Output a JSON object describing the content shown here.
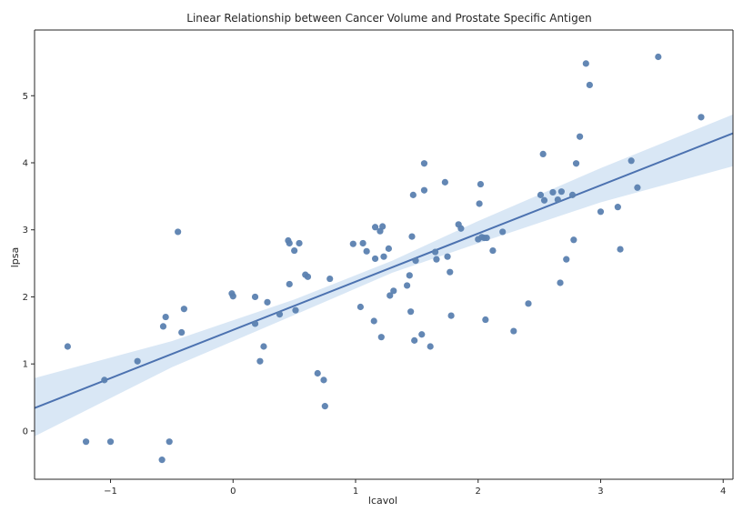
{
  "chart_data": {
    "type": "scatter",
    "title": "Linear Relationship between Cancer Volume and Prostate Specific Antigen",
    "xlabel": "lcavol",
    "ylabel": "lpsa",
    "xlim": [
      -1.62,
      4.08
    ],
    "ylim": [
      -0.72,
      5.98
    ],
    "xticks": [
      -1,
      0,
      1,
      2,
      3,
      4
    ],
    "yticks": [
      0,
      1,
      2,
      3,
      4,
      5
    ],
    "grid": false,
    "legend": "none",
    "colors": {
      "points": "#5b81b0",
      "line": "#4c72b0",
      "band": "#d2e3f3",
      "axes": "#262626"
    },
    "regression": {
      "intercept": 1.507,
      "slope": 0.719
    },
    "confidence_band": {
      "x": [
        -1.62,
        -0.5,
        0.5,
        1.3,
        2.0,
        3.0,
        4.08
      ],
      "lower": [
        -0.08,
        0.95,
        1.73,
        2.36,
        2.8,
        3.41,
        3.95
      ],
      "upper": [
        0.79,
        1.34,
        1.96,
        2.54,
        3.13,
        3.92,
        4.72
      ]
    },
    "points": [
      {
        "x": -1.35,
        "y": 1.26
      },
      {
        "x": -1.2,
        "y": -0.16
      },
      {
        "x": -1.05,
        "y": 0.76
      },
      {
        "x": -1.0,
        "y": -0.16
      },
      {
        "x": -0.78,
        "y": 1.04
      },
      {
        "x": -0.58,
        "y": -0.43
      },
      {
        "x": -0.57,
        "y": 1.56
      },
      {
        "x": -0.55,
        "y": 1.7
      },
      {
        "x": -0.52,
        "y": -0.16
      },
      {
        "x": -0.45,
        "y": 2.97
      },
      {
        "x": -0.42,
        "y": 1.47
      },
      {
        "x": -0.4,
        "y": 1.82
      },
      {
        "x": -0.01,
        "y": 2.05
      },
      {
        "x": 0.0,
        "y": 2.01
      },
      {
        "x": 0.18,
        "y": 1.6
      },
      {
        "x": 0.18,
        "y": 2.0
      },
      {
        "x": 0.22,
        "y": 1.04
      },
      {
        "x": 0.25,
        "y": 1.26
      },
      {
        "x": 0.28,
        "y": 1.92
      },
      {
        "x": 0.38,
        "y": 1.74
      },
      {
        "x": 0.45,
        "y": 2.84
      },
      {
        "x": 0.46,
        "y": 2.19
      },
      {
        "x": 0.46,
        "y": 2.8
      },
      {
        "x": 0.5,
        "y": 2.69
      },
      {
        "x": 0.51,
        "y": 1.8
      },
      {
        "x": 0.54,
        "y": 2.8
      },
      {
        "x": 0.59,
        "y": 2.33
      },
      {
        "x": 0.61,
        "y": 2.3
      },
      {
        "x": 0.69,
        "y": 0.86
      },
      {
        "x": 0.74,
        "y": 0.76
      },
      {
        "x": 0.75,
        "y": 0.37
      },
      {
        "x": 0.79,
        "y": 2.27
      },
      {
        "x": 0.98,
        "y": 2.79
      },
      {
        "x": 1.04,
        "y": 1.85
      },
      {
        "x": 1.06,
        "y": 2.8
      },
      {
        "x": 1.09,
        "y": 2.68
      },
      {
        "x": 1.15,
        "y": 1.64
      },
      {
        "x": 1.16,
        "y": 3.04
      },
      {
        "x": 1.16,
        "y": 2.57
      },
      {
        "x": 1.2,
        "y": 2.98
      },
      {
        "x": 1.21,
        "y": 1.4
      },
      {
        "x": 1.22,
        "y": 3.05
      },
      {
        "x": 1.23,
        "y": 2.6
      },
      {
        "x": 1.27,
        "y": 2.72
      },
      {
        "x": 1.28,
        "y": 2.02
      },
      {
        "x": 1.31,
        "y": 2.09
      },
      {
        "x": 1.42,
        "y": 2.17
      },
      {
        "x": 1.44,
        "y": 2.32
      },
      {
        "x": 1.45,
        "y": 1.78
      },
      {
        "x": 1.46,
        "y": 2.9
      },
      {
        "x": 1.47,
        "y": 3.52
      },
      {
        "x": 1.48,
        "y": 1.35
      },
      {
        "x": 1.49,
        "y": 2.54
      },
      {
        "x": 1.54,
        "y": 1.44
      },
      {
        "x": 1.56,
        "y": 3.59
      },
      {
        "x": 1.56,
        "y": 3.99
      },
      {
        "x": 1.61,
        "y": 1.26
      },
      {
        "x": 1.65,
        "y": 2.67
      },
      {
        "x": 1.66,
        "y": 2.56
      },
      {
        "x": 1.73,
        "y": 3.71
      },
      {
        "x": 1.75,
        "y": 2.6
      },
      {
        "x": 1.77,
        "y": 2.37
      },
      {
        "x": 1.78,
        "y": 1.72
      },
      {
        "x": 1.84,
        "y": 3.08
      },
      {
        "x": 1.86,
        "y": 3.02
      },
      {
        "x": 2.0,
        "y": 2.86
      },
      {
        "x": 2.01,
        "y": 3.39
      },
      {
        "x": 2.02,
        "y": 3.68
      },
      {
        "x": 2.03,
        "y": 2.89
      },
      {
        "x": 2.05,
        "y": 2.88
      },
      {
        "x": 2.06,
        "y": 1.66
      },
      {
        "x": 2.07,
        "y": 2.88
      },
      {
        "x": 2.12,
        "y": 2.69
      },
      {
        "x": 2.2,
        "y": 2.97
      },
      {
        "x": 2.29,
        "y": 1.49
      },
      {
        "x": 2.41,
        "y": 1.9
      },
      {
        "x": 2.51,
        "y": 3.52
      },
      {
        "x": 2.53,
        "y": 4.13
      },
      {
        "x": 2.54,
        "y": 3.44
      },
      {
        "x": 2.61,
        "y": 3.56
      },
      {
        "x": 2.65,
        "y": 3.45
      },
      {
        "x": 2.67,
        "y": 2.21
      },
      {
        "x": 2.68,
        "y": 3.57
      },
      {
        "x": 2.72,
        "y": 2.56
      },
      {
        "x": 2.77,
        "y": 3.52
      },
      {
        "x": 2.78,
        "y": 2.85
      },
      {
        "x": 2.8,
        "y": 3.99
      },
      {
        "x": 2.83,
        "y": 4.39
      },
      {
        "x": 2.88,
        "y": 5.48
      },
      {
        "x": 2.91,
        "y": 5.16
      },
      {
        "x": 3.0,
        "y": 3.27
      },
      {
        "x": 3.14,
        "y": 3.34
      },
      {
        "x": 3.16,
        "y": 2.71
      },
      {
        "x": 3.25,
        "y": 4.03
      },
      {
        "x": 3.3,
        "y": 3.63
      },
      {
        "x": 3.47,
        "y": 5.58
      },
      {
        "x": 3.82,
        "y": 4.68
      }
    ]
  }
}
